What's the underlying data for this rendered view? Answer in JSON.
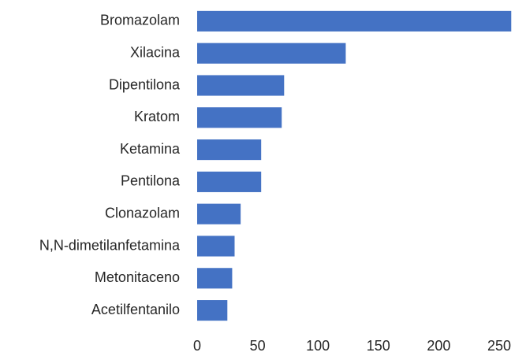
{
  "chart_data": {
    "type": "barh",
    "categories": [
      "Bromazolam",
      "Xilacina",
      "Dipentilona",
      "Kratom",
      "Ketamina",
      "Pentilona",
      "Clonazolam",
      "N,N-dimetilanfetamina",
      "Metonitaceno",
      "Acetilfentanilo"
    ],
    "values": [
      260,
      123,
      72,
      70,
      53,
      53,
      36,
      31,
      29,
      25
    ],
    "color": "#4472c4",
    "xlim": [
      0,
      270
    ],
    "xticks": [
      0,
      50,
      100,
      150,
      200,
      250
    ],
    "grid": false
  }
}
